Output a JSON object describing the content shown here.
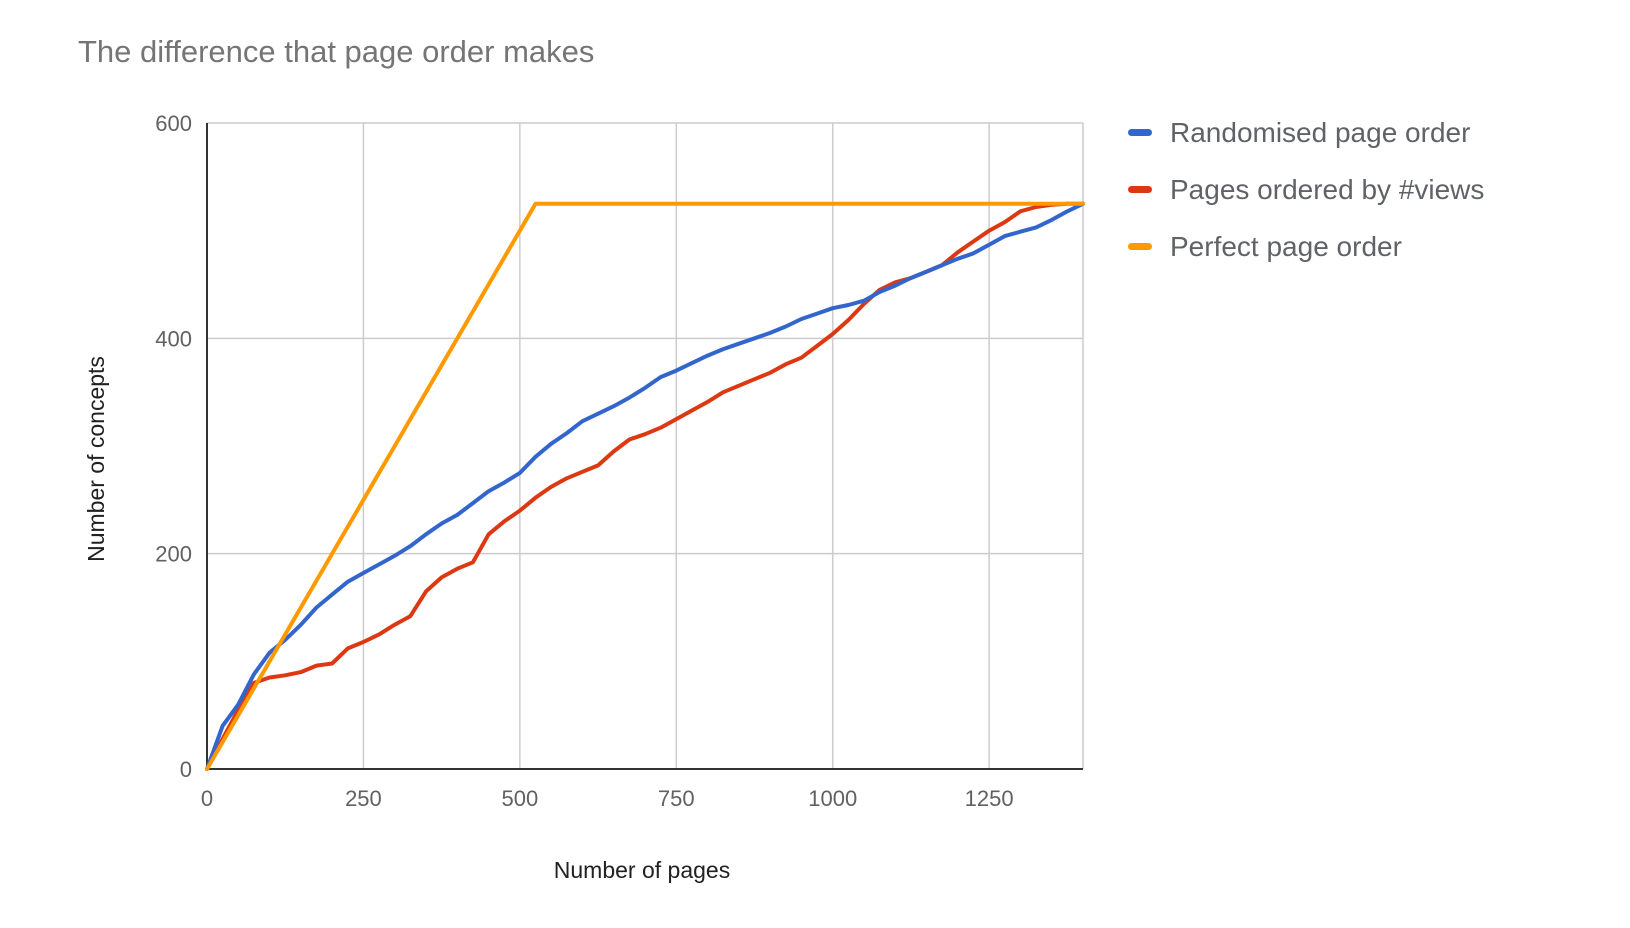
{
  "chart_data": {
    "type": "line",
    "title": "The difference that page order makes",
    "xlabel": "Number of pages",
    "ylabel": "Number of concepts",
    "xlim": [
      0,
      1400
    ],
    "ylim": [
      0,
      600
    ],
    "xticks": [
      0,
      250,
      500,
      750,
      1000,
      1250
    ],
    "yticks": [
      0,
      200,
      400,
      600
    ],
    "grid": true,
    "legend_position": "right",
    "series": [
      {
        "name": "Randomised page order",
        "color": "#3366cc",
        "x": [
          0,
          25,
          50,
          75,
          100,
          125,
          150,
          175,
          200,
          225,
          250,
          275,
          300,
          325,
          350,
          375,
          400,
          425,
          450,
          475,
          500,
          525,
          550,
          575,
          600,
          625,
          650,
          675,
          700,
          725,
          750,
          775,
          800,
          825,
          850,
          875,
          900,
          925,
          950,
          975,
          1000,
          1025,
          1050,
          1075,
          1100,
          1125,
          1150,
          1175,
          1200,
          1225,
          1250,
          1275,
          1300,
          1325,
          1350,
          1375,
          1400
        ],
        "y": [
          0,
          40,
          60,
          88,
          108,
          120,
          134,
          150,
          162,
          174,
          182,
          190,
          198,
          207,
          218,
          228,
          236,
          247,
          258,
          266,
          275,
          290,
          302,
          312,
          323,
          330,
          337,
          345,
          354,
          364,
          370,
          377,
          384,
          390,
          395,
          400,
          405,
          411,
          418,
          423,
          428,
          431,
          435,
          443,
          449,
          456,
          462,
          468,
          474,
          479,
          487,
          495,
          499,
          503,
          510,
          518,
          525
        ]
      },
      {
        "name": "Pages ordered by #views",
        "color": "#dc3912",
        "x": [
          0,
          25,
          50,
          75,
          100,
          125,
          150,
          175,
          200,
          225,
          250,
          275,
          300,
          325,
          350,
          375,
          400,
          425,
          450,
          475,
          500,
          525,
          550,
          575,
          600,
          625,
          650,
          675,
          700,
          725,
          750,
          775,
          800,
          825,
          850,
          875,
          900,
          925,
          950,
          975,
          1000,
          1025,
          1050,
          1075,
          1100,
          1125,
          1150,
          1175,
          1200,
          1225,
          1250,
          1275,
          1300,
          1325,
          1350,
          1375,
          1400
        ],
        "y": [
          0,
          28,
          55,
          80,
          85,
          87,
          90,
          96,
          98,
          112,
          118,
          125,
          134,
          142,
          165,
          178,
          186,
          192,
          218,
          230,
          240,
          252,
          262,
          270,
          276,
          282,
          295,
          306,
          311,
          317,
          325,
          333,
          341,
          350,
          356,
          362,
          368,
          376,
          382,
          393,
          404,
          417,
          432,
          445,
          452,
          456,
          462,
          468,
          480,
          490,
          500,
          508,
          518,
          522,
          524,
          525,
          525
        ]
      },
      {
        "name": "Perfect page order",
        "color": "#ff9900",
        "x": [
          0,
          525,
          1400
        ],
        "y": [
          0,
          525,
          525
        ]
      }
    ]
  }
}
